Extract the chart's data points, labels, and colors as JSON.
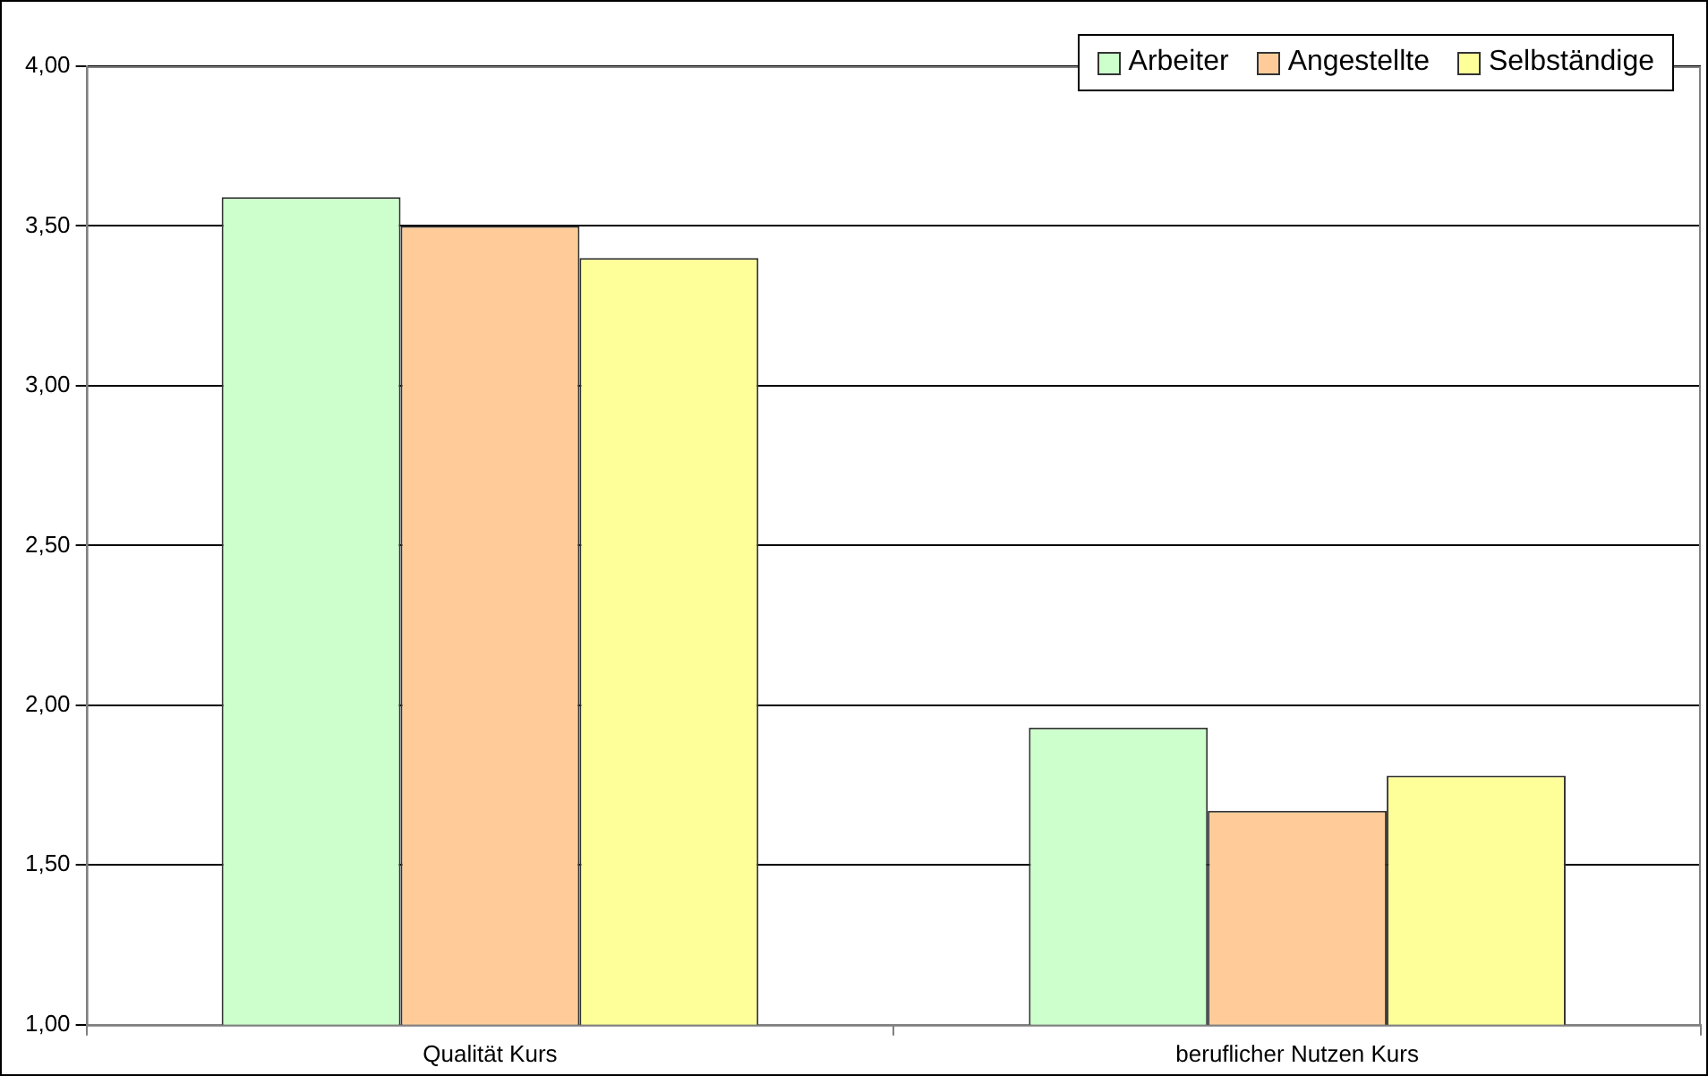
{
  "chart_data": {
    "type": "bar",
    "categories": [
      "Qualität Kurs",
      "beruflicher Nutzen Kurs"
    ],
    "series": [
      {
        "name": "Arbeiter",
        "color": "#ccffcc",
        "values": [
          3.59,
          1.93
        ]
      },
      {
        "name": "Angestellte",
        "color": "#ffcc99",
        "values": [
          3.5,
          1.67
        ]
      },
      {
        "name": "Selbständige",
        "color": "#ffff99",
        "values": [
          3.4,
          1.78
        ]
      }
    ],
    "ylim": [
      1,
      4
    ],
    "yticks": [
      {
        "value": 1,
        "label": "1,00"
      },
      {
        "value": 1.5,
        "label": "1,50"
      },
      {
        "value": 2,
        "label": "2,00"
      },
      {
        "value": 2.5,
        "label": "2,50"
      },
      {
        "value": 3,
        "label": "3,00"
      },
      {
        "value": 3.5,
        "label": "3,50"
      },
      {
        "value": 4,
        "label": "4,00"
      }
    ],
    "grid": "y",
    "legend": "top right"
  }
}
